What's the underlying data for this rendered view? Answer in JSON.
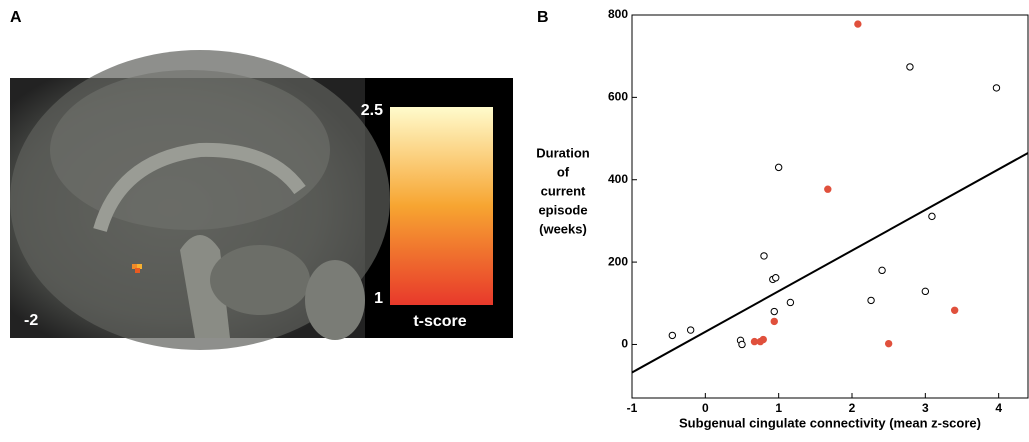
{
  "chart_data": [
    {
      "type": "image",
      "panel": "A",
      "slice_label": "-2",
      "colorbar": {
        "label": "t-score",
        "lim": [
          1,
          2.5
        ],
        "ticks": [
          1,
          2.5
        ],
        "colors": [
          "#e8392b",
          "#f7a531",
          "#fffbcc"
        ]
      }
    },
    {
      "type": "scatter",
      "panel": "B",
      "x_label": "Subgenual cingulate connectivity (mean z-score)",
      "y_label": [
        "Duration",
        "of",
        "current",
        "episode",
        "(weeks)"
      ],
      "xlim": [
        -1,
        4.4
      ],
      "ylim": [
        -130,
        800
      ],
      "xticks": [
        -1,
        0,
        1,
        2,
        3,
        4
      ],
      "yticks": [
        0,
        200,
        400,
        600,
        800
      ],
      "series": [
        {
          "color": "#000000",
          "marker": "open",
          "x": [
            -0.45,
            -0.2,
            0.48,
            0.5,
            0.92,
            0.96,
            1.0,
            0.8,
            0.94,
            1.16,
            2.26,
            2.41,
            2.79,
            3.0,
            3.09,
            3.97
          ],
          "values": [
            22,
            35,
            10,
            0,
            158,
            162,
            430,
            215,
            80,
            102,
            107,
            180,
            674,
            129,
            311,
            623
          ]
        },
        {
          "color": "#e0503c",
          "marker": "filled",
          "x": [
            2.08,
            1.67,
            0.67,
            0.75,
            0.79,
            0.94,
            2.5,
            3.4
          ],
          "values": [
            778,
            377,
            7,
            7,
            12,
            56,
            2,
            83
          ]
        }
      ],
      "trendline": {
        "color": "#000000",
        "x": [
          -1,
          4.4
        ],
        "values": [
          -68,
          465
        ]
      }
    }
  ]
}
